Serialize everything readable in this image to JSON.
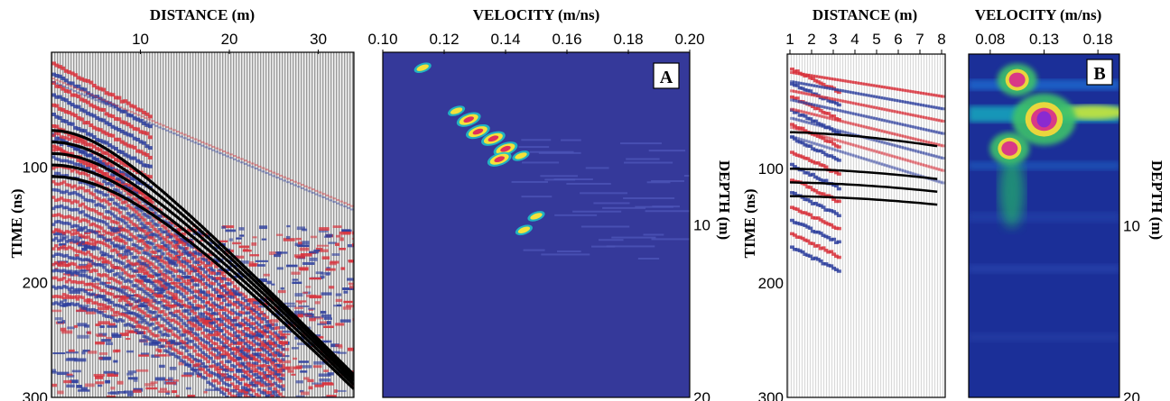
{
  "colors": {
    "seismic_red": "#d8323c",
    "seismic_blue": "#2e3f9e",
    "semblance_bg": "#35399a",
    "hyperbola": "#000000"
  },
  "chart_data": [
    {
      "id": "A-shotgather",
      "type": "heatmap",
      "title": "DISTANCE (m)",
      "xlabel": "DISTANCE (m)",
      "ylabel": "TIME (ns)",
      "x_ticks": [
        "10",
        "20",
        "30"
      ],
      "y_ticks": [
        "100",
        "200",
        "300"
      ],
      "xlim": [
        0,
        34
      ],
      "ylim": [
        0,
        300
      ],
      "overlay_hyperbolas": [
        {
          "t0": 68,
          "v": 0.125
        },
        {
          "t0": 78,
          "v": 0.125
        },
        {
          "t0": 88,
          "v": 0.125
        },
        {
          "t0": 98,
          "v": 0.125
        },
        {
          "t0": 108,
          "v": 0.125
        }
      ]
    },
    {
      "id": "A-semblance",
      "type": "heatmap",
      "title": "VELOCITY (m/ns)",
      "xlabel": "VELOCITY (m/ns)",
      "ylabel": "DEPTH (m)",
      "x_ticks": [
        "0.10",
        "0.12",
        "0.14",
        "0.16",
        "0.18",
        "0.20"
      ],
      "y_ticks": [
        "10",
        "20"
      ],
      "xlim": [
        0.1,
        0.2
      ],
      "ylim": [
        0,
        20
      ],
      "panel_label": "A",
      "peaks": [
        {
          "v": 0.113,
          "d": 0.9
        },
        {
          "v": 0.124,
          "d": 3.4
        },
        {
          "v": 0.128,
          "d": 3.9
        },
        {
          "v": 0.131,
          "d": 4.6
        },
        {
          "v": 0.136,
          "d": 5.0
        },
        {
          "v": 0.14,
          "d": 5.6
        },
        {
          "v": 0.138,
          "d": 6.2
        },
        {
          "v": 0.145,
          "d": 6.0
        },
        {
          "v": 0.15,
          "d": 9.5
        },
        {
          "v": 0.146,
          "d": 10.3
        }
      ]
    },
    {
      "id": "B-shotgather",
      "type": "heatmap",
      "title": "DISTANCE (m)",
      "xlabel": "DISTANCE (m)",
      "ylabel": "TIME (ns)",
      "x_ticks": [
        "1",
        "2",
        "3",
        "4",
        "5",
        "6",
        "7",
        "8"
      ],
      "y_ticks": [
        "100",
        "200",
        "300"
      ],
      "xlim": [
        1,
        8
      ],
      "ylim": [
        0,
        300
      ],
      "overlay_hyperbolas": [
        {
          "t0": 68,
          "v": 0.13
        },
        {
          "t0": 100,
          "v": 0.13
        },
        {
          "t0": 112,
          "v": 0.13
        },
        {
          "t0": 124,
          "v": 0.13
        }
      ]
    },
    {
      "id": "B-semblance",
      "type": "heatmap",
      "title": "VELOCITY (m/ns)",
      "xlabel": "VELOCITY (m/ns)",
      "ylabel": "DEPTH (m)",
      "x_ticks": [
        "0.08",
        "0.13",
        "0.18"
      ],
      "y_ticks": [
        "10",
        "20"
      ],
      "xlim": [
        0.06,
        0.2
      ],
      "ylim": [
        0,
        20
      ],
      "panel_label": "B",
      "peaks": [
        {
          "v": 0.105,
          "d": 1.5
        },
        {
          "v": 0.13,
          "d": 3.8
        },
        {
          "v": 0.098,
          "d": 5.5
        }
      ]
    }
  ]
}
